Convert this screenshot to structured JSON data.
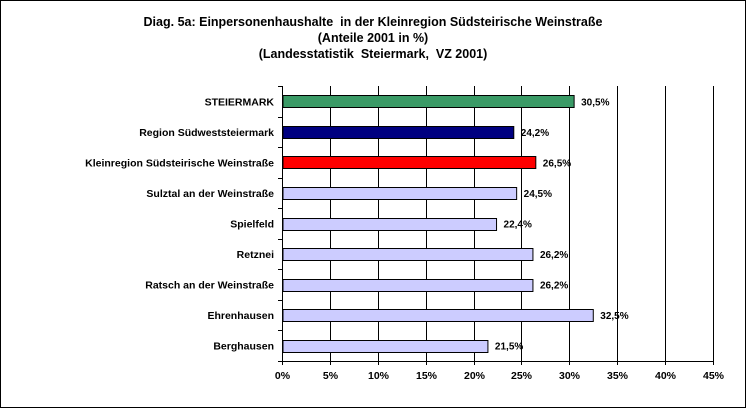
{
  "chart_data": {
    "type": "bar",
    "orientation": "horizontal",
    "title": "Diag. 5a: Einpersonenhaushalte  in der Kleinregion Südsteirische Weinstraße",
    "subtitle": "(Anteile 2001 in %)",
    "source": "(Landesstatistik  Steiermark,  VZ 2001)",
    "categories": [
      "STEIERMARK",
      "Region Südweststeiermark",
      "Kleinregion Südsteirische Weinstraße",
      "Sulztal an der Weinstraße",
      "Spielfeld",
      "Retznei",
      "Ratsch an der Weinstraße",
      "Ehrenhausen",
      "Berghausen"
    ],
    "values": [
      30.5,
      24.2,
      26.5,
      24.5,
      22.4,
      26.2,
      26.2,
      32.5,
      21.5
    ],
    "value_labels": [
      "30,5%",
      "24,2%",
      "26,5%",
      "24,5%",
      "22,4%",
      "26,2%",
      "26,2%",
      "32,5%",
      "21,5%"
    ],
    "colors": [
      "#3a9a66",
      "#000080",
      "#ff0000",
      "#ccccff",
      "#ccccff",
      "#ccccff",
      "#ccccff",
      "#ccccff",
      "#ccccff"
    ],
    "xlim": [
      0,
      45
    ],
    "xticks": [
      0,
      5,
      10,
      15,
      20,
      25,
      30,
      35,
      40,
      45
    ],
    "xtick_labels": [
      "0%",
      "5%",
      "10%",
      "15%",
      "20%",
      "25%",
      "30%",
      "35%",
      "40%",
      "45%"
    ],
    "grid": true,
    "legend": "none"
  }
}
